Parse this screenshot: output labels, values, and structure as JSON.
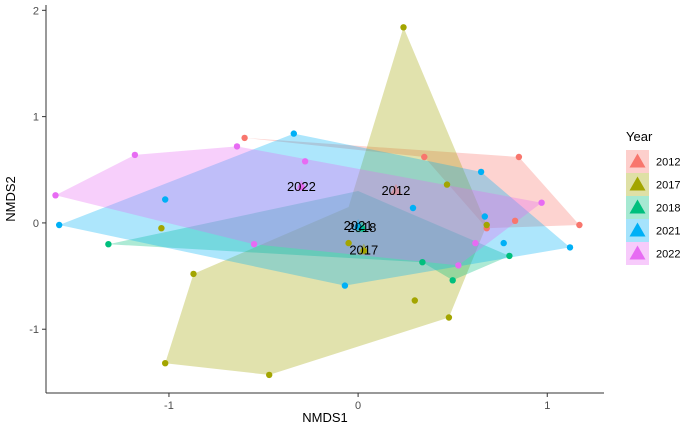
{
  "chart_data": {
    "type": "scatter",
    "xlabel": "NMDS1",
    "ylabel": "NMDS2",
    "xlim": [
      -1.65,
      1.3
    ],
    "ylim": [
      -1.6,
      2.05
    ],
    "xticks": [
      -1,
      0,
      1
    ],
    "yticks": [
      -1,
      0,
      1,
      2
    ],
    "grid": false,
    "legend": {
      "title": "Year",
      "position": "right"
    },
    "series": [
      {
        "name": "2012",
        "color": "#F8766D",
        "points": [
          [
            -0.6,
            0.8
          ],
          [
            0.35,
            0.62
          ],
          [
            0.85,
            0.62
          ],
          [
            1.17,
            -0.02
          ],
          [
            0.83,
            0.02
          ],
          [
            0.68,
            -0.05
          ]
        ],
        "hull": [
          [
            -0.6,
            0.8
          ],
          [
            0.85,
            0.62
          ],
          [
            1.17,
            -0.02
          ],
          [
            0.68,
            -0.05
          ],
          [
            0.35,
            0.62
          ]
        ],
        "centroid": [
          0.2,
          0.3
        ],
        "label": "2012"
      },
      {
        "name": "2017",
        "color": "#A3A500",
        "points": [
          [
            0.24,
            1.84
          ],
          [
            0.47,
            0.36
          ],
          [
            0.68,
            -0.02
          ],
          [
            -1.04,
            -0.05
          ],
          [
            -0.05,
            -0.19
          ],
          [
            -0.87,
            -0.48
          ],
          [
            0.3,
            -0.73
          ],
          [
            0.48,
            -0.89
          ],
          [
            -1.02,
            -1.32
          ],
          [
            -0.47,
            -1.43
          ],
          [
            0.03,
            -0.26
          ]
        ],
        "hull": [
          [
            0.24,
            1.84
          ],
          [
            0.68,
            -0.02
          ],
          [
            0.48,
            -0.89
          ],
          [
            -0.47,
            -1.43
          ],
          [
            -1.02,
            -1.32
          ],
          [
            -0.87,
            -0.48
          ],
          [
            -0.05,
            0.15
          ]
        ],
        "centroid": [
          0.03,
          -0.26
        ],
        "label": "2017"
      },
      {
        "name": "2018",
        "color": "#00BF7D",
        "points": [
          [
            -1.32,
            -0.2
          ],
          [
            0.34,
            -0.37
          ],
          [
            0.5,
            -0.54
          ],
          [
            0.8,
            -0.31
          ],
          [
            0.02,
            -0.05
          ]
        ],
        "hull": [
          [
            -1.32,
            -0.2
          ],
          [
            0.0,
            0.3
          ],
          [
            0.8,
            -0.31
          ],
          [
            0.5,
            -0.54
          ],
          [
            0.34,
            -0.37
          ]
        ],
        "centroid": [
          0.02,
          -0.05
        ],
        "label": "2018"
      },
      {
        "name": "2021",
        "color": "#00B0F6",
        "points": [
          [
            -1.58,
            -0.02
          ],
          [
            -1.02,
            0.22
          ],
          [
            -0.34,
            0.84
          ],
          [
            0.65,
            0.48
          ],
          [
            0.29,
            0.14
          ],
          [
            0.67,
            0.06
          ],
          [
            0.77,
            -0.19
          ],
          [
            1.12,
            -0.23
          ],
          [
            -0.07,
            -0.59
          ],
          [
            0.0,
            -0.03
          ]
        ],
        "hull": [
          [
            -1.58,
            -0.02
          ],
          [
            -0.34,
            0.84
          ],
          [
            0.65,
            0.48
          ],
          [
            1.12,
            -0.23
          ],
          [
            -0.07,
            -0.59
          ]
        ],
        "centroid": [
          0.0,
          -0.03
        ],
        "label": "2021"
      },
      {
        "name": "2022",
        "color": "#E76BF3",
        "points": [
          [
            -1.6,
            0.26
          ],
          [
            -1.18,
            0.64
          ],
          [
            -0.64,
            0.72
          ],
          [
            -0.28,
            0.58
          ],
          [
            0.97,
            0.19
          ],
          [
            0.62,
            -0.19
          ],
          [
            -0.55,
            -0.2
          ],
          [
            0.53,
            -0.4
          ],
          [
            -0.3,
            0.34
          ]
        ],
        "hull": [
          [
            -1.6,
            0.26
          ],
          [
            -1.18,
            0.64
          ],
          [
            -0.64,
            0.72
          ],
          [
            0.97,
            0.19
          ],
          [
            0.53,
            -0.4
          ],
          [
            -0.55,
            -0.2
          ]
        ],
        "centroid": [
          -0.3,
          0.34
        ],
        "label": "2022"
      }
    ]
  }
}
